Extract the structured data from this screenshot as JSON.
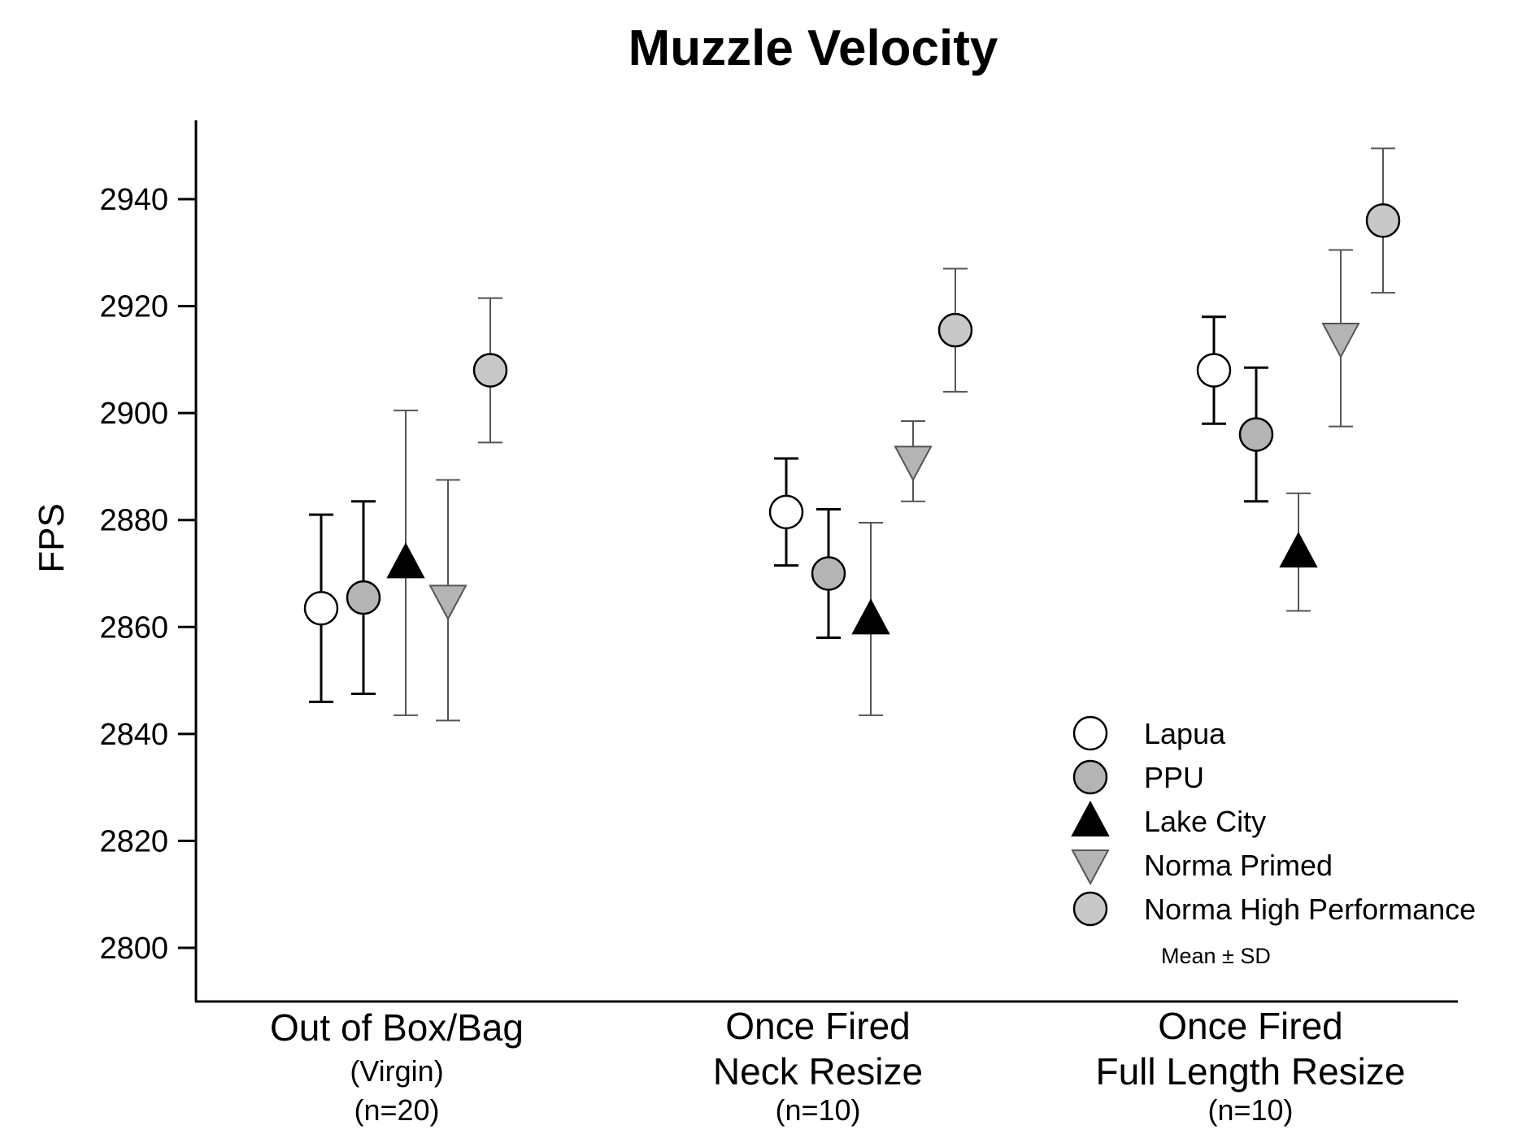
{
  "chart_data": {
    "type": "scatter",
    "title": "Muzzle Velocity",
    "ylabel": "FPS",
    "ylim": [
      2790,
      2955
    ],
    "yticks": [
      2800,
      2820,
      2840,
      2860,
      2880,
      2900,
      2920,
      2940
    ],
    "categories": [
      {
        "lines": [
          "Out of Box/Bag"
        ],
        "sublines": [
          "(Virgin)",
          "(n=20)"
        ]
      },
      {
        "lines": [
          "Once Fired",
          "Neck Resize"
        ],
        "sublines": [
          "(n=10)"
        ]
      },
      {
        "lines": [
          "Once Fired",
          "Full Length Resize"
        ],
        "sublines": [
          "(n=10)"
        ]
      }
    ],
    "series": [
      {
        "name": "Lapua",
        "marker": "circle",
        "fill": "#ffffff",
        "errcolor": "#000000",
        "mean": [
          2863.5,
          2881.5,
          2908
        ],
        "sd": [
          17.5,
          10,
          10
        ]
      },
      {
        "name": "PPU",
        "marker": "circle",
        "fill": "#b4b4b4",
        "errcolor": "#000000",
        "mean": [
          2865.5,
          2870,
          2896
        ],
        "sd": [
          18,
          12,
          12.5
        ]
      },
      {
        "name": "Lake City",
        "marker": "triangle-up",
        "fill": "#000000",
        "errcolor": "#555555",
        "mean": [
          2872,
          2861.5,
          2874
        ],
        "sd": [
          28.5,
          18,
          11
        ]
      },
      {
        "name": "Norma Primed",
        "marker": "triangle-down",
        "fill": "#b4b4b4",
        "errcolor": "#555555",
        "mean": [
          2865,
          2891,
          2914
        ],
        "sd": [
          22.5,
          7.5,
          16.5
        ]
      },
      {
        "name": "Norma High Performance",
        "marker": "circle",
        "fill": "#c8c8c8",
        "errcolor": "#555555",
        "mean": [
          2908,
          2915.5,
          2936
        ],
        "sd": [
          13.5,
          11.5,
          13.5
        ]
      }
    ],
    "legend_position": "bottom-right",
    "legend_note": "Mean ± SD",
    "grid": false
  }
}
